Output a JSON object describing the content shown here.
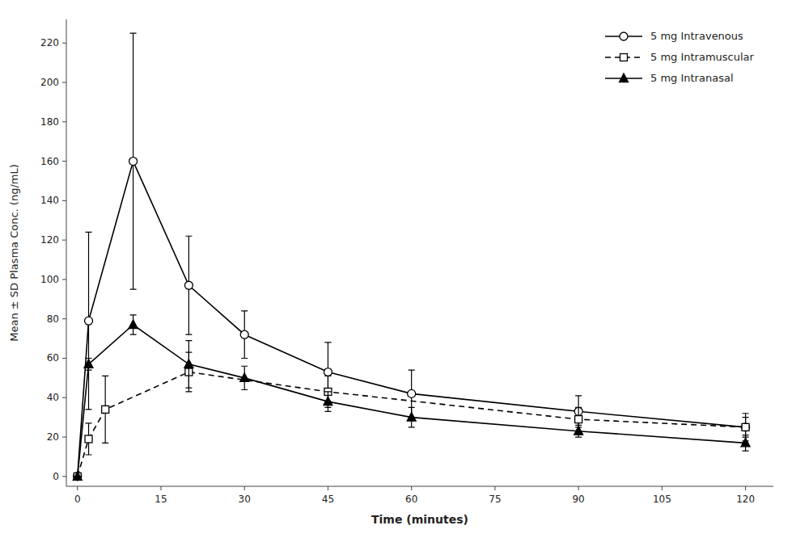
{
  "chart_data": {
    "type": "line",
    "xlabel": "Time (minutes)",
    "ylabel": "Mean ± SD Plasma Conc. (ng/mL)",
    "xlim": [
      -2,
      125
    ],
    "ylim": [
      -5,
      232
    ],
    "xticks": [
      0,
      15,
      30,
      45,
      60,
      75,
      90,
      105,
      120
    ],
    "yticks": [
      0,
      20,
      40,
      60,
      80,
      100,
      120,
      140,
      160,
      180,
      200,
      220
    ],
    "grid": false,
    "legend": "upper right",
    "series": [
      {
        "name": "5 mg Intravenous",
        "color": "#000000",
        "marker": "circle-open",
        "line_style": "solid",
        "x": [
          0,
          2,
          10,
          20,
          30,
          45,
          60,
          90,
          120
        ],
        "values": [
          0,
          79,
          160,
          97,
          72,
          53,
          42,
          33,
          25
        ],
        "errors": [
          0,
          45,
          65,
          25,
          12,
          15,
          12,
          8,
          7
        ]
      },
      {
        "name": "5 mg Intramuscular",
        "color": "#000000",
        "marker": "square-open",
        "line_style": "dashed",
        "x": [
          0,
          2,
          5,
          20,
          45,
          90,
          120
        ],
        "values": [
          0,
          19,
          34,
          53,
          43,
          29,
          25
        ],
        "errors": [
          0,
          8,
          17,
          10,
          8,
          6,
          5
        ]
      },
      {
        "name": "5 mg Intranasal",
        "color": "#000000",
        "marker": "triangle-filled",
        "line_style": "solid",
        "x": [
          0,
          2,
          10,
          20,
          30,
          45,
          60,
          90,
          120
        ],
        "values": [
          0,
          57,
          77,
          57,
          50,
          38,
          30,
          23,
          17
        ],
        "errors": [
          0,
          3,
          5,
          12,
          6,
          5,
          5,
          3,
          4
        ]
      }
    ]
  }
}
